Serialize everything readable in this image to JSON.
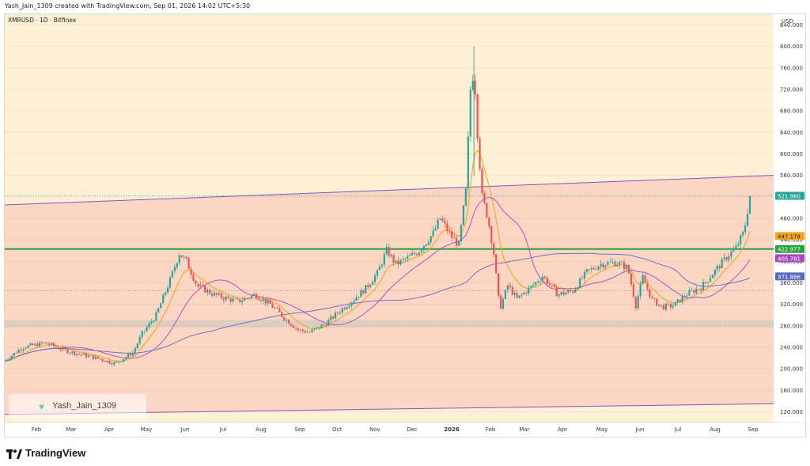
{
  "header": {
    "credit": "Yash_Jain_1309 created with TradingView.com, Sep 01, 2026 14:02 UTC+5:30"
  },
  "symbol": {
    "text": "XMRUSD · 1D · Bitfinex"
  },
  "author_badge": {
    "name": "Yash_Jain_1309"
  },
  "footer": {
    "brand": "TradingView"
  },
  "colors": {
    "upper_zone": "#fdf0d5",
    "channel_fill": "#fbd6c3",
    "channel_line": "#7e57c2",
    "support_line": "#2e9e3e",
    "support_band": "#c8c8c0",
    "up_candle": "#26a69a",
    "down_candle": "#ef5350",
    "ema_fast": "#f5a623",
    "ma_mid": "#ab47bc",
    "ma_slow": "#5c6bc0"
  },
  "chart_data": {
    "type": "candlestick",
    "symbol": "XMRUSD · 1D · Bitfinex",
    "currency": "USD",
    "ylim": [
      100,
      860
    ],
    "y_ticks": [
      "120.000",
      "160.000",
      "200.000",
      "240.000",
      "280.000",
      "320.000",
      "360.000",
      "400.000",
      "440.000",
      "480.000",
      "520.000",
      "560.000",
      "600.000",
      "640.000",
      "680.000",
      "720.000",
      "760.000",
      "800.000",
      "840.000"
    ],
    "x_ticks": [
      {
        "label": "Feb",
        "bold": false
      },
      {
        "label": "Mar",
        "bold": false
      },
      {
        "label": "Apr",
        "bold": false
      },
      {
        "label": "May",
        "bold": false
      },
      {
        "label": "Jun",
        "bold": false
      },
      {
        "label": "Jul",
        "bold": false
      },
      {
        "label": "Aug",
        "bold": false
      },
      {
        "label": "Sep",
        "bold": false
      },
      {
        "label": "Oct",
        "bold": false
      },
      {
        "label": "Nov",
        "bold": false
      },
      {
        "label": "Dec",
        "bold": false
      },
      {
        "label": "2026",
        "bold": true
      },
      {
        "label": "Feb",
        "bold": false
      },
      {
        "label": "Mar",
        "bold": false
      },
      {
        "label": "Apr",
        "bold": false
      },
      {
        "label": "May",
        "bold": false
      },
      {
        "label": "Jun",
        "bold": false
      },
      {
        "label": "Jul",
        "bold": false
      },
      {
        "label": "Aug",
        "bold": false
      },
      {
        "label": "Sep",
        "bold": false
      }
    ],
    "price_labels": [
      {
        "value": 521.98,
        "text": "521.980",
        "color": "#26a69a"
      },
      {
        "value": 447.178,
        "text": "447.178",
        "color": "#f5a623"
      },
      {
        "value": 422.977,
        "text": "422.977",
        "color": "#2e9e3e"
      },
      {
        "value": 405.781,
        "text": "405.781",
        "color": "#ab47bc"
      },
      {
        "value": 371.886,
        "text": "371.886",
        "color": "#5c6bc0"
      }
    ],
    "horizontal_support": 422.977,
    "support_zone": [
      278,
      290
    ],
    "dotted_reference": 345,
    "channel": {
      "upper": [
        505,
        560
      ],
      "lower": [
        115,
        135
      ]
    },
    "last_close": 521.98,
    "price_path": [
      {
        "t": 0,
        "p": 215
      },
      {
        "t": 15,
        "p": 240
      },
      {
        "t": 35,
        "p": 248
      },
      {
        "t": 55,
        "p": 232
      },
      {
        "t": 75,
        "p": 222
      },
      {
        "t": 95,
        "p": 210
      },
      {
        "t": 110,
        "p": 230
      },
      {
        "t": 118,
        "p": 265
      },
      {
        "t": 130,
        "p": 300
      },
      {
        "t": 142,
        "p": 365
      },
      {
        "t": 150,
        "p": 415
      },
      {
        "t": 156,
        "p": 400
      },
      {
        "t": 165,
        "p": 355
      },
      {
        "t": 180,
        "p": 338
      },
      {
        "t": 200,
        "p": 325
      },
      {
        "t": 215,
        "p": 338
      },
      {
        "t": 228,
        "p": 320
      },
      {
        "t": 240,
        "p": 295
      },
      {
        "t": 252,
        "p": 272
      },
      {
        "t": 262,
        "p": 268
      },
      {
        "t": 275,
        "p": 283
      },
      {
        "t": 290,
        "p": 312
      },
      {
        "t": 300,
        "p": 330
      },
      {
        "t": 310,
        "p": 350
      },
      {
        "t": 320,
        "p": 378
      },
      {
        "t": 328,
        "p": 420
      },
      {
        "t": 336,
        "p": 395
      },
      {
        "t": 345,
        "p": 405
      },
      {
        "t": 355,
        "p": 418
      },
      {
        "t": 368,
        "p": 452
      },
      {
        "t": 374,
        "p": 480
      },
      {
        "t": 383,
        "p": 448
      },
      {
        "t": 390,
        "p": 430
      },
      {
        "t": 396,
        "p": 530
      },
      {
        "t": 400,
        "p": 720
      },
      {
        "t": 403,
        "p": 760
      },
      {
        "t": 406,
        "p": 640
      },
      {
        "t": 410,
        "p": 520
      },
      {
        "t": 415,
        "p": 480
      },
      {
        "t": 420,
        "p": 415
      },
      {
        "t": 425,
        "p": 310
      },
      {
        "t": 432,
        "p": 355
      },
      {
        "t": 440,
        "p": 330
      },
      {
        "t": 452,
        "p": 352
      },
      {
        "t": 462,
        "p": 373
      },
      {
        "t": 475,
        "p": 338
      },
      {
        "t": 488,
        "p": 345
      },
      {
        "t": 500,
        "p": 380
      },
      {
        "t": 512,
        "p": 395
      },
      {
        "t": 525,
        "p": 398
      },
      {
        "t": 535,
        "p": 388
      },
      {
        "t": 542,
        "p": 318
      },
      {
        "t": 548,
        "p": 370
      },
      {
        "t": 556,
        "p": 328
      },
      {
        "t": 565,
        "p": 315
      },
      {
        "t": 575,
        "p": 318
      },
      {
        "t": 585,
        "p": 338
      },
      {
        "t": 598,
        "p": 352
      },
      {
        "t": 610,
        "p": 382
      },
      {
        "t": 620,
        "p": 408
      },
      {
        "t": 628,
        "p": 425
      },
      {
        "t": 635,
        "p": 455
      },
      {
        "t": 640,
        "p": 522
      }
    ]
  }
}
